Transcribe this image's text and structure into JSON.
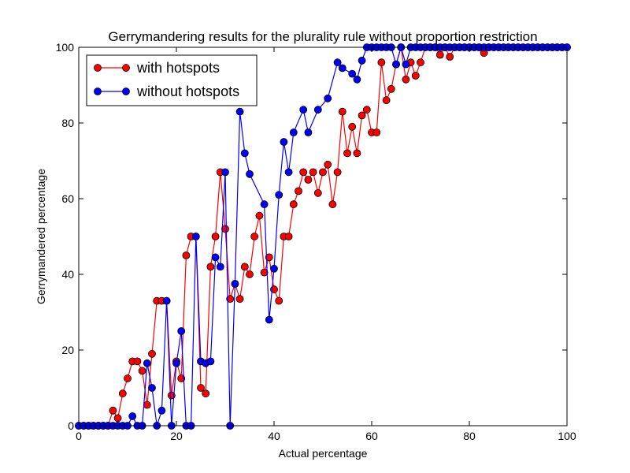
{
  "chart_data": {
    "type": "line",
    "title": "Gerrymandering results for the plurality rule without proportion restriction",
    "xlabel": "Actual percentage",
    "ylabel": "Gerrymandered percentage",
    "xlim": [
      0,
      100
    ],
    "ylim": [
      0,
      100
    ],
    "xticks": [
      0,
      20,
      40,
      60,
      80,
      100
    ],
    "yticks": [
      0,
      20,
      40,
      60,
      80,
      100
    ],
    "grid": false,
    "legend_position": "top-left",
    "series": [
      {
        "name": "with hotspots",
        "color": "#ff0000",
        "marker": "circle",
        "x": [
          0,
          1,
          2,
          3,
          4,
          5,
          6,
          7,
          8,
          9,
          10,
          11,
          12,
          13,
          14,
          15,
          16,
          17,
          18,
          19,
          20,
          21,
          22,
          23,
          24,
          25,
          26,
          27,
          28,
          29,
          30,
          31,
          32,
          33,
          34,
          35,
          36,
          37,
          38,
          39,
          40,
          41,
          42,
          43,
          44,
          45,
          46,
          47,
          48,
          49,
          50,
          51,
          52,
          53,
          54,
          55,
          56,
          57,
          58,
          59,
          60,
          61,
          62,
          63,
          64,
          65,
          66,
          67,
          68,
          69,
          70,
          71,
          72,
          73,
          74,
          75,
          76,
          77,
          78,
          79,
          80,
          81,
          82,
          83,
          84,
          85,
          86,
          87,
          88,
          89,
          90,
          91,
          92,
          93,
          94,
          95,
          96,
          97,
          98,
          99,
          100
        ],
        "y": [
          0,
          0,
          0,
          0,
          0,
          0,
          0,
          4,
          2,
          8.5,
          12.5,
          17,
          17,
          14.5,
          5.5,
          19,
          33,
          33,
          33,
          8,
          17,
          12.5,
          45,
          50,
          50,
          10,
          8.5,
          42,
          50,
          67,
          52,
          33.5,
          37.5,
          33.5,
          42,
          40,
          50,
          55.5,
          40.5,
          44.5,
          36,
          33,
          50,
          50,
          58.5,
          62,
          67,
          65,
          67,
          61.5,
          67,
          69,
          58.5,
          67,
          83,
          72,
          79,
          72,
          82,
          83.5,
          77.5,
          77.5,
          96,
          86,
          89,
          95.5,
          100,
          91.5,
          96,
          92.5,
          96,
          100,
          100,
          100,
          98,
          100,
          97.5,
          100,
          100,
          100,
          100,
          100,
          100,
          98.5,
          100,
          100,
          100,
          100,
          100,
          100,
          100,
          100,
          100,
          100,
          100,
          100,
          100,
          100,
          100,
          100,
          100
        ]
      },
      {
        "name": "without hotspots",
        "color": "#0000ff",
        "marker": "circle",
        "x": [
          0,
          1,
          2,
          3,
          4,
          5,
          6,
          7,
          8,
          9,
          10,
          11,
          12,
          13,
          14,
          15,
          16,
          17,
          18,
          19,
          20,
          21,
          22,
          23,
          24,
          25,
          26,
          27,
          28,
          29,
          30,
          31,
          32,
          33,
          34,
          35,
          36,
          37,
          38,
          39,
          40,
          41,
          42,
          43,
          44,
          45,
          46,
          47,
          48,
          49,
          50,
          51,
          52,
          53,
          54,
          55,
          56,
          57,
          58,
          59,
          60,
          61,
          62,
          63,
          64,
          65,
          66,
          67,
          68,
          69,
          70,
          71,
          72,
          73,
          74,
          75,
          76,
          77,
          78,
          79,
          80,
          81,
          82,
          83,
          84,
          85,
          86,
          87,
          88,
          89,
          90,
          91,
          92,
          93,
          94,
          95,
          96,
          97,
          98,
          99,
          100
        ],
        "y": [
          0,
          0,
          0,
          0,
          0,
          0,
          0,
          0,
          0,
          0,
          0,
          2.5,
          0,
          0,
          16.5,
          10,
          0,
          4,
          33,
          0,
          16.5,
          25,
          0,
          0,
          50,
          17,
          16.5,
          17,
          44.5,
          42,
          67,
          0,
          37.5,
          83,
          72,
          66.5,
          null,
          null,
          58.5,
          28,
          41.5,
          61,
          75,
          67,
          77.5,
          null,
          83.5,
          77.5,
          null,
          83.5,
          null,
          86.5,
          null,
          96,
          94.5,
          null,
          93,
          91.5,
          96.5,
          100,
          100,
          100,
          100,
          100,
          100,
          95.5,
          100,
          95.5,
          100,
          100,
          100,
          100,
          100,
          100,
          100,
          100,
          100,
          100,
          100,
          100,
          100,
          100,
          100,
          100,
          100,
          100,
          100,
          100,
          100,
          100,
          100,
          100,
          100,
          100,
          100,
          100,
          100,
          100,
          100,
          100,
          100
        ]
      }
    ]
  }
}
